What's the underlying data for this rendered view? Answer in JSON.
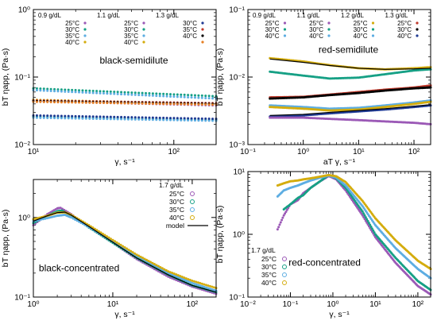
{
  "chart_data": [
    {
      "id": "black-semidilute",
      "type": "scatter",
      "title": "black-semidilute",
      "xlabel": "γ, s⁻¹",
      "ylabel": "bT ηapp, (Pa·s)",
      "xlog": true,
      "ylog": true,
      "xlim": [
        10,
        200
      ],
      "ylim": [
        0.01,
        1
      ],
      "xticks": [
        {
          "v": 10,
          "t": "10¹"
        },
        {
          "v": 100,
          "t": "10²"
        }
      ],
      "yticks": [
        {
          "v": 0.01,
          "t": "10⁻²"
        },
        {
          "v": 0.1,
          "t": "10⁻¹"
        },
        {
          "v": 1,
          "t": "10⁰"
        }
      ],
      "legend_placement": "top",
      "legend_groups": [
        {
          "header": "0.9 g/dL",
          "entries": [
            {
              "label": "25°C",
              "color": "#9b59b6"
            },
            {
              "label": "30°C",
              "color": "#16a085"
            },
            {
              "label": "35°C",
              "color": "#5dade2"
            },
            {
              "label": "40°C",
              "color": "#d4ac0d"
            }
          ]
        },
        {
          "header": "1.1 g/dL",
          "entries": [
            {
              "label": "25°C",
              "color": "#9b59b6"
            },
            {
              "label": "30°C",
              "color": "#16a085"
            },
            {
              "label": "35°C",
              "color": "#5dade2"
            },
            {
              "label": "40°C",
              "color": "#d4ac0d"
            }
          ]
        },
        {
          "header": "1.3 g/dL",
          "entries": [
            {
              "label": "30°C",
              "color": "#1f3a93"
            },
            {
              "label": "35°C",
              "color": "#c0392b"
            },
            {
              "label": "40°C",
              "color": "#000000"
            },
            {
              "label": "",
              "color": "#e67e22"
            }
          ]
        }
      ],
      "series": [
        {
          "color": "#16a085",
          "x": [
            10,
            200
          ],
          "y": [
            0.068,
            0.052
          ]
        },
        {
          "color": "#5dade2",
          "x": [
            10,
            200
          ],
          "y": [
            0.064,
            0.048
          ]
        },
        {
          "color": "#d4ac0d",
          "x": [
            10,
            200
          ],
          "y": [
            0.046,
            0.04
          ]
        },
        {
          "color": "#9b59b6",
          "x": [
            10,
            200
          ],
          "y": [
            0.044,
            0.038
          ]
        },
        {
          "color": "#c0392b",
          "x": [
            10,
            200
          ],
          "y": [
            0.045,
            0.041
          ]
        },
        {
          "color": "#000000",
          "x": [
            10,
            200
          ],
          "y": [
            0.044,
            0.04
          ]
        },
        {
          "color": "#e67e22",
          "x": [
            10,
            200
          ],
          "y": [
            0.043,
            0.039
          ]
        },
        {
          "color": "#16a085",
          "x": [
            10,
            200
          ],
          "y": [
            0.026,
            0.023
          ]
        },
        {
          "color": "#5dade2",
          "x": [
            10,
            200
          ],
          "y": [
            0.025,
            0.0225
          ]
        },
        {
          "color": "#1f3a93",
          "x": [
            10,
            200
          ],
          "y": [
            0.027,
            0.024
          ]
        }
      ]
    },
    {
      "id": "red-semidilute",
      "type": "scatter",
      "title": "red-semidilute",
      "xlabel": "aT γ, s⁻¹",
      "ylabel": "bT ηapp, (Pa·s)",
      "xlog": true,
      "ylog": true,
      "xlim": [
        0.1,
        200
      ],
      "ylim": [
        0.001,
        0.1
      ],
      "xticks": [
        {
          "v": 0.1,
          "t": "10⁻¹"
        },
        {
          "v": 1,
          "t": "10⁰"
        },
        {
          "v": 10,
          "t": "10¹"
        },
        {
          "v": 100,
          "t": "10²"
        }
      ],
      "yticks": [
        {
          "v": 0.001,
          "t": "10⁻³"
        },
        {
          "v": 0.01,
          "t": "10⁻²"
        },
        {
          "v": 0.1,
          "t": "10⁻¹"
        }
      ],
      "legend_placement": "top",
      "legend_groups": [
        {
          "header": "0.9 g/dL",
          "entries": [
            {
              "label": "25°C",
              "color": "#9b59b6"
            },
            {
              "label": "30°C",
              "color": "#16a085"
            },
            {
              "label": "40°C",
              "color": "#5dade2"
            }
          ]
        },
        {
          "header": "1.1 g/dL",
          "entries": [
            {
              "label": "25°C",
              "color": "#9b59b6"
            },
            {
              "label": "30°C",
              "color": "#16a085"
            },
            {
              "label": "40°C",
              "color": "#5dade2"
            }
          ]
        },
        {
          "header": "1.2 g/dL",
          "entries": [
            {
              "label": "25°C",
              "color": "#d4ac0d"
            },
            {
              "label": "30°C",
              "color": "#16a085"
            },
            {
              "label": "40°C",
              "color": "#5dade2"
            }
          ]
        },
        {
          "header": "1.3 g/dL",
          "entries": [
            {
              "label": "25°C",
              "color": "#c0392b"
            },
            {
              "label": "30°C",
              "color": "#000000"
            },
            {
              "label": "40°C",
              "color": "#1f3a93"
            }
          ]
        }
      ],
      "series": [
        {
          "color": "#d4ac0d",
          "x": [
            0.25,
            0.5,
            1,
            3,
            10,
            30,
            100,
            200
          ],
          "y": [
            0.019,
            0.018,
            0.017,
            0.015,
            0.0135,
            0.013,
            0.0135,
            0.014
          ]
        },
        {
          "color": "#16a085",
          "x": [
            0.25,
            1,
            3,
            10,
            30,
            100,
            200
          ],
          "y": [
            0.012,
            0.0105,
            0.0095,
            0.0098,
            0.011,
            0.0125,
            0.013
          ]
        },
        {
          "color": "#c0392b",
          "x": [
            0.25,
            1,
            3,
            10,
            30,
            100,
            200
          ],
          "y": [
            0.005,
            0.0051,
            0.0055,
            0.006,
            0.0065,
            0.007,
            0.0075
          ]
        },
        {
          "color": "#000000",
          "x": [
            0.25,
            1,
            3,
            10,
            30,
            100,
            200
          ],
          "y": [
            0.0048,
            0.005,
            0.0054,
            0.0058,
            0.0063,
            0.0068,
            0.007
          ]
        },
        {
          "color": "#5dade2",
          "x": [
            0.25,
            1,
            3,
            10,
            30,
            100,
            200
          ],
          "y": [
            0.0038,
            0.0036,
            0.0034,
            0.0035,
            0.0038,
            0.0042,
            0.0045
          ]
        },
        {
          "color": "#d4ac0d",
          "x": [
            0.25,
            1,
            3,
            10,
            30,
            100,
            200
          ],
          "y": [
            0.0036,
            0.0034,
            0.0032,
            0.0033,
            0.0036,
            0.004,
            0.0043
          ]
        },
        {
          "color": "#1f3a93",
          "x": [
            0.25,
            1,
            3,
            10,
            30,
            100,
            200
          ],
          "y": [
            0.0026,
            0.0027,
            0.0029,
            0.0031,
            0.0033,
            0.0036,
            0.0038
          ]
        },
        {
          "color": "#9b59b6",
          "x": [
            0.25,
            1,
            3,
            10,
            30,
            100,
            200
          ],
          "y": [
            0.0025,
            0.0025,
            0.0024,
            0.0023,
            0.0022,
            0.0021,
            0.002
          ]
        }
      ],
      "models": [
        {
          "x": [
            0.25,
            0.5,
            1,
            3,
            10,
            30,
            100,
            200
          ],
          "y": [
            0.0185,
            0.0175,
            0.0165,
            0.0148,
            0.0135,
            0.013,
            0.0132,
            0.0135
          ]
        },
        {
          "x": [
            0.25,
            1,
            3,
            10,
            30,
            100,
            200
          ],
          "y": [
            0.0049,
            0.005,
            0.0054,
            0.0059,
            0.0064,
            0.0069,
            0.0072
          ]
        },
        {
          "x": [
            0.25,
            1,
            3,
            10,
            30,
            100,
            200
          ],
          "y": [
            0.0027,
            0.0028,
            0.003,
            0.0032,
            0.0034,
            0.0037,
            0.0039
          ]
        }
      ]
    },
    {
      "id": "black-concentrated",
      "type": "scatter",
      "title": "black-concentrated",
      "xlabel": "γ, s⁻¹",
      "ylabel": "bT ηapp, (Pa·s)",
      "xlog": true,
      "ylog": true,
      "xlim": [
        1,
        200
      ],
      "ylim": [
        0.1,
        3
      ],
      "xticks": [
        {
          "v": 1,
          "t": "10⁰"
        },
        {
          "v": 10,
          "t": "10¹"
        },
        {
          "v": 100,
          "t": "10²"
        }
      ],
      "yticks": [
        {
          "v": 0.1,
          "t": "10⁻¹"
        },
        {
          "v": 1,
          "t": "10⁰"
        }
      ],
      "legend_placement": "top-right",
      "legend_groups": [
        {
          "header": "1.7 g/dL",
          "entries": [
            {
              "label": "25°C",
              "color": "#9b59b6"
            },
            {
              "label": "30°C",
              "color": "#16a085"
            },
            {
              "label": "35°C",
              "color": "#5dade2"
            },
            {
              "label": "40°C",
              "color": "#d4ac0d"
            },
            {
              "label": "model",
              "color": "#000000"
            }
          ]
        }
      ],
      "series": [
        {
          "color": "#9b59b6",
          "x": [
            1,
            1.5,
            2,
            2.2,
            3,
            5,
            10,
            20,
            50,
            100,
            200
          ],
          "y": [
            0.8,
            1.1,
            1.3,
            1.32,
            1.1,
            0.75,
            0.48,
            0.3,
            0.18,
            0.135,
            0.11
          ]
        },
        {
          "color": "#16a085",
          "x": [
            1,
            1.5,
            2,
            2.3,
            3,
            5,
            10,
            20,
            50,
            100,
            200
          ],
          "y": [
            0.85,
            1.05,
            1.2,
            1.22,
            1.05,
            0.75,
            0.48,
            0.31,
            0.19,
            0.14,
            0.115
          ]
        },
        {
          "color": "#5dade2",
          "x": [
            1,
            1.5,
            2,
            2.5,
            3,
            5,
            10,
            20,
            50,
            100,
            200
          ],
          "y": [
            0.9,
            0.98,
            1.05,
            1.08,
            1.0,
            0.76,
            0.5,
            0.33,
            0.2,
            0.15,
            0.12
          ]
        },
        {
          "color": "#d4ac0d",
          "x": [
            1,
            1.5,
            2,
            2.5,
            3,
            5,
            10,
            20,
            50,
            100,
            200
          ],
          "y": [
            0.95,
            1.05,
            1.15,
            1.16,
            1.08,
            0.8,
            0.52,
            0.34,
            0.21,
            0.16,
            0.13
          ]
        }
      ],
      "models": [
        {
          "x": [
            1,
            1.5,
            2,
            2.5,
            3,
            5,
            10,
            20,
            50,
            100,
            200
          ],
          "y": [
            0.9,
            1.05,
            1.15,
            1.17,
            1.07,
            0.77,
            0.49,
            0.31,
            0.19,
            0.14,
            0.115
          ]
        }
      ]
    },
    {
      "id": "red-concentrated",
      "type": "scatter",
      "title": "red-concentrated",
      "xlabel": "γ, s⁻¹",
      "ylabel": "bT ηapp, (Pa·s)",
      "xlog": true,
      "ylog": true,
      "xlim": [
        0.01,
        200
      ],
      "ylim": [
        0.1,
        10
      ],
      "xticks": [
        {
          "v": 0.01,
          "t": "10⁻²"
        },
        {
          "v": 0.1,
          "t": "10⁻¹"
        },
        {
          "v": 1,
          "t": "10⁰"
        },
        {
          "v": 10,
          "t": "10¹"
        },
        {
          "v": 100,
          "t": "10²"
        }
      ],
      "yticks": [
        {
          "v": 0.1,
          "t": "10⁻¹"
        },
        {
          "v": 1,
          "t": "10⁰"
        },
        {
          "v": 10,
          "t": "10¹"
        }
      ],
      "legend_placement": "bottom-left",
      "legend_groups": [
        {
          "header": "1.7 g/dL",
          "entries": [
            {
              "label": "25°C",
              "color": "#9b59b6"
            },
            {
              "label": "30°C",
              "color": "#16a085"
            },
            {
              "label": "35°C",
              "color": "#5dade2"
            },
            {
              "label": "40°C",
              "color": "#d4ac0d"
            }
          ]
        }
      ],
      "series": [
        {
          "color": "#9b59b6",
          "x": [
            0.05,
            0.07,
            0.1,
            0.15,
            0.2,
            0.3,
            0.5,
            0.8,
            1.2,
            2,
            5,
            10,
            30,
            100,
            200
          ],
          "y": [
            1.2,
            2.0,
            3.0,
            3.5,
            4.5,
            5.5,
            7.0,
            8.5,
            7.5,
            5.0,
            2.0,
            0.9,
            0.35,
            0.15,
            0.11
          ]
        },
        {
          "color": "#16a085",
          "x": [
            0.07,
            0.1,
            0.15,
            0.2,
            0.3,
            0.5,
            0.8,
            1.2,
            2,
            5,
            10,
            30,
            100,
            200
          ],
          "y": [
            2.5,
            3.0,
            3.8,
            4.2,
            5.5,
            7.0,
            8.8,
            7.8,
            5.5,
            2.3,
            1.0,
            0.42,
            0.18,
            0.13
          ]
        },
        {
          "color": "#5dade2",
          "x": [
            0.05,
            0.07,
            0.1,
            0.15,
            0.2,
            0.3,
            0.5,
            0.8,
            1.2,
            2,
            5,
            10,
            30,
            100,
            200
          ],
          "y": [
            4.0,
            5.0,
            5.5,
            6.0,
            6.5,
            7.2,
            8.0,
            8.6,
            8.0,
            6.0,
            2.8,
            1.4,
            0.6,
            0.28,
            0.2
          ]
        },
        {
          "color": "#d4ac0d",
          "x": [
            0.05,
            0.07,
            0.1,
            0.15,
            0.2,
            0.3,
            0.5,
            0.8,
            1.2,
            2,
            5,
            10,
            30,
            100,
            200
          ],
          "y": [
            6.0,
            6.5,
            7.0,
            7.2,
            7.5,
            7.8,
            8.3,
            8.8,
            8.4,
            6.8,
            3.4,
            1.8,
            0.8,
            0.38,
            0.28
          ]
        }
      ]
    }
  ]
}
